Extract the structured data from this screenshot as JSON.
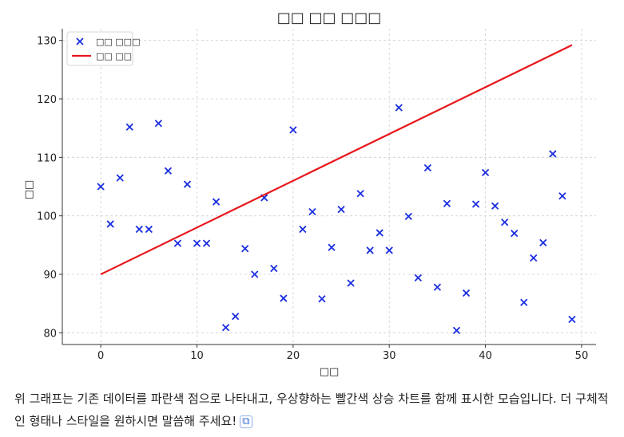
{
  "chart_data": {
    "type": "scatter",
    "title": "□□ □□ □□□",
    "xlabel": "□□",
    "ylabel": "□□",
    "xlim": [
      -4,
      51.5
    ],
    "ylim": [
      78,
      132
    ],
    "xticks": [
      0,
      10,
      20,
      30,
      40,
      50
    ],
    "yticks": [
      80,
      90,
      100,
      110,
      120,
      130
    ],
    "grid": true,
    "legend_position": "top-left",
    "series": [
      {
        "name": "□□ □□□",
        "kind": "scatter",
        "marker": "x",
        "color": "#1a2ee0",
        "x": [
          0,
          1,
          2,
          3,
          4,
          5,
          6,
          7,
          8,
          9,
          10,
          11,
          12,
          13,
          14,
          15,
          16,
          17,
          18,
          19,
          20,
          21,
          22,
          23,
          24,
          25,
          26,
          27,
          28,
          29,
          30,
          31,
          32,
          33,
          34,
          35,
          36,
          37,
          38,
          39,
          40,
          41,
          42,
          43,
          44,
          45,
          46,
          47,
          48,
          49
        ],
        "y": [
          105,
          98.6,
          106.5,
          115.2,
          97.7,
          97.7,
          115.8,
          107.7,
          95.3,
          105.4,
          95.3,
          95.3,
          102.4,
          80.9,
          82.8,
          94.4,
          90,
          103.1,
          91,
          85.9,
          114.7,
          97.7,
          100.7,
          85.8,
          94.6,
          101.1,
          88.5,
          103.8,
          94.1,
          97.1,
          94.1,
          118.5,
          99.9,
          89.4,
          108.2,
          87.8,
          102.1,
          80.4,
          86.8,
          102,
          107.4,
          101.7,
          98.9,
          97,
          85.2,
          92.8,
          95.4,
          110.6,
          103.4,
          82.3
        ]
      },
      {
        "name": "□□ □□",
        "kind": "line",
        "color": "#e8161b",
        "x": [
          0,
          49
        ],
        "y": [
          90,
          129.2
        ]
      }
    ]
  },
  "caption": {
    "text": "위 그래프는 기존 데이터를 파란색 점으로 나타내고, 우상향하는 빨간색 상승 차트를 함께 표시한 모습입니다. 더 구체적인 형태나 스타일을 원하시면 말씀해 주세요!",
    "copy_icon": "copy-icon"
  }
}
